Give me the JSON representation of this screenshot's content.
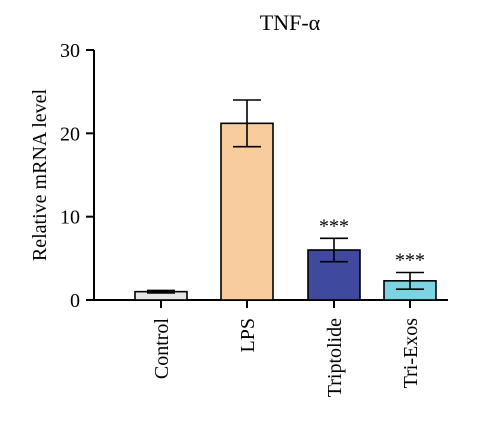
{
  "chart_data": {
    "type": "bar",
    "title": "TNF-α",
    "ylabel": "Relative mRNA level",
    "xlabel": "",
    "ylim": [
      0,
      30
    ],
    "yticks": [
      0,
      10,
      20,
      30
    ],
    "categories": [
      "Control",
      "LPS",
      "Triptolide",
      "Tri-Exos"
    ],
    "values": [
      1.0,
      21.2,
      6.0,
      2.3
    ],
    "errors": [
      0.15,
      2.8,
      1.4,
      1.0
    ],
    "annotations": [
      "",
      "",
      "***",
      "***"
    ],
    "colors": [
      "#e6e6e6",
      "#f8cc9c",
      "#3f4a9e",
      "#7ed3e3"
    ],
    "grid": false,
    "legend": "none"
  }
}
